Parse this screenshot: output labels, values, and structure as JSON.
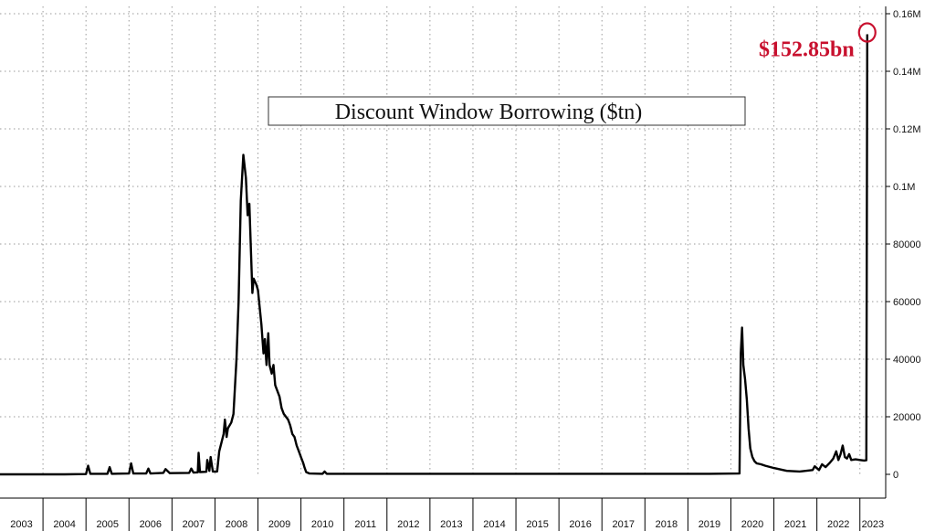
{
  "chart_data": {
    "type": "line",
    "title": "Discount Window Borrowing ($tn)",
    "xlabel": "",
    "ylabel": "",
    "xlim": [
      2003.0,
      2023.6
    ],
    "ylim": [
      0,
      160000
    ],
    "y_tick_labels": [
      "0",
      "20000",
      "40000",
      "60000",
      "80000",
      "0.1M",
      "0.12M",
      "0.14M",
      "0.16M"
    ],
    "y_tick_values": [
      0,
      20000,
      40000,
      60000,
      80000,
      100000,
      120000,
      140000,
      160000
    ],
    "x_tick_labels": [
      "2003",
      "2004",
      "2005",
      "2006",
      "2007",
      "2008",
      "2009",
      "2010",
      "2011",
      "2012",
      "2013",
      "2014",
      "2015",
      "2016",
      "2017",
      "2018",
      "2019",
      "2020",
      "2021",
      "2022",
      "2023"
    ],
    "grid": true,
    "y_axis_position": "right",
    "annotation": {
      "text": "$152.85bn",
      "x": 2023.2,
      "y": 152850,
      "color": "#c8102e"
    },
    "series": [
      {
        "name": "",
        "color": "#000000",
        "points": [
          [
            2003.0,
            0
          ],
          [
            2004.5,
            0
          ],
          [
            2005.0,
            100
          ],
          [
            2005.05,
            3000
          ],
          [
            2005.1,
            200
          ],
          [
            2005.5,
            200
          ],
          [
            2005.55,
            2500
          ],
          [
            2005.6,
            200
          ],
          [
            2006.0,
            300
          ],
          [
            2006.05,
            3800
          ],
          [
            2006.1,
            300
          ],
          [
            2006.4,
            300
          ],
          [
            2006.45,
            2000
          ],
          [
            2006.5,
            300
          ],
          [
            2006.8,
            500
          ],
          [
            2006.85,
            1800
          ],
          [
            2006.95,
            400
          ],
          [
            2007.4,
            500
          ],
          [
            2007.45,
            2000
          ],
          [
            2007.5,
            600
          ],
          [
            2007.6,
            700
          ],
          [
            2007.62,
            7500
          ],
          [
            2007.65,
            800
          ],
          [
            2007.8,
            900
          ],
          [
            2007.82,
            5000
          ],
          [
            2007.87,
            1200
          ],
          [
            2007.9,
            6000
          ],
          [
            2007.95,
            1000
          ],
          [
            2008.05,
            1000
          ],
          [
            2008.1,
            8000
          ],
          [
            2008.15,
            11000
          ],
          [
            2008.2,
            14000
          ],
          [
            2008.23,
            19000
          ],
          [
            2008.27,
            13000
          ],
          [
            2008.3,
            16000
          ],
          [
            2008.38,
            18000
          ],
          [
            2008.43,
            21000
          ],
          [
            2008.5,
            40000
          ],
          [
            2008.55,
            60000
          ],
          [
            2008.6,
            95000
          ],
          [
            2008.66,
            111000
          ],
          [
            2008.72,
            103000
          ],
          [
            2008.76,
            90000
          ],
          [
            2008.8,
            94000
          ],
          [
            2008.84,
            76000
          ],
          [
            2008.87,
            63000
          ],
          [
            2008.9,
            68000
          ],
          [
            2008.96,
            66000
          ],
          [
            2009.0,
            64000
          ],
          [
            2009.04,
            58000
          ],
          [
            2009.08,
            52000
          ],
          [
            2009.1,
            48000
          ],
          [
            2009.13,
            42000
          ],
          [
            2009.16,
            47000
          ],
          [
            2009.2,
            38000
          ],
          [
            2009.24,
            49000
          ],
          [
            2009.27,
            38000
          ],
          [
            2009.32,
            35000
          ],
          [
            2009.36,
            38000
          ],
          [
            2009.4,
            31000
          ],
          [
            2009.45,
            29000
          ],
          [
            2009.5,
            27000
          ],
          [
            2009.55,
            23000
          ],
          [
            2009.6,
            21000
          ],
          [
            2009.7,
            19000
          ],
          [
            2009.75,
            17000
          ],
          [
            2009.8,
            14000
          ],
          [
            2009.85,
            13000
          ],
          [
            2009.9,
            10000
          ],
          [
            2009.95,
            8000
          ],
          [
            2010.0,
            6000
          ],
          [
            2010.05,
            4000
          ],
          [
            2010.08,
            2500
          ],
          [
            2010.12,
            800
          ],
          [
            2010.2,
            300
          ],
          [
            2010.5,
            200
          ],
          [
            2010.55,
            1000
          ],
          [
            2010.6,
            200
          ],
          [
            2011.0,
            200
          ],
          [
            2012.0,
            200
          ],
          [
            2014.0,
            200
          ],
          [
            2016.0,
            200
          ],
          [
            2018.0,
            200
          ],
          [
            2019.5,
            200
          ],
          [
            2020.2,
            300
          ],
          [
            2020.23,
            42000
          ],
          [
            2020.26,
            51000
          ],
          [
            2020.29,
            38000
          ],
          [
            2020.33,
            33000
          ],
          [
            2020.37,
            26000
          ],
          [
            2020.41,
            16000
          ],
          [
            2020.45,
            9000
          ],
          [
            2020.5,
            6000
          ],
          [
            2020.55,
            4500
          ],
          [
            2020.6,
            3800
          ],
          [
            2020.7,
            3500
          ],
          [
            2020.8,
            3000
          ],
          [
            2021.0,
            2200
          ],
          [
            2021.3,
            1200
          ],
          [
            2021.6,
            1000
          ],
          [
            2021.9,
            1500
          ],
          [
            2021.95,
            2800
          ],
          [
            2022.05,
            1500
          ],
          [
            2022.12,
            3500
          ],
          [
            2022.2,
            2500
          ],
          [
            2022.3,
            4000
          ],
          [
            2022.38,
            5500
          ],
          [
            2022.45,
            8000
          ],
          [
            2022.5,
            5000
          ],
          [
            2022.55,
            7000
          ],
          [
            2022.6,
            10000
          ],
          [
            2022.65,
            6000
          ],
          [
            2022.7,
            5500
          ],
          [
            2022.75,
            7000
          ],
          [
            2022.8,
            5000
          ],
          [
            2022.9,
            5200
          ],
          [
            2023.0,
            5000
          ],
          [
            2023.1,
            4800
          ],
          [
            2023.15,
            4900
          ],
          [
            2023.17,
            152850
          ]
        ]
      }
    ]
  }
}
